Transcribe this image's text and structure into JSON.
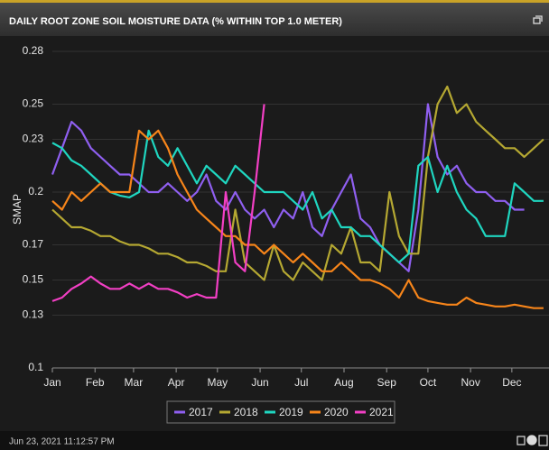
{
  "chart_data": {
    "type": "line",
    "title": "DAILY ROOT ZONE SOIL MOISTURE DATA (% WITHIN TOP 1.0 METER)",
    "y_label": "SMAP",
    "timestamp": "Jun 23, 2021 11:12:57 PM",
    "x": [
      0,
      7,
      14,
      21,
      28,
      35,
      42,
      49,
      56,
      63,
      70,
      77,
      84,
      91,
      98,
      105,
      112,
      119,
      126,
      133,
      140,
      147,
      154,
      161,
      168,
      175,
      182,
      189,
      196,
      203,
      210,
      217,
      224,
      231,
      238,
      245,
      252,
      259,
      266,
      273,
      280,
      287,
      294,
      301,
      308,
      315,
      322,
      329,
      336,
      343,
      350,
      357
    ],
    "xlim": [
      0,
      361
    ],
    "xticks": [
      {
        "value": 0,
        "label": "Jan"
      },
      {
        "value": 31,
        "label": "Feb"
      },
      {
        "value": 59,
        "label": "Mar"
      },
      {
        "value": 90,
        "label": "Apr"
      },
      {
        "value": 120,
        "label": "May"
      },
      {
        "value": 151,
        "label": "Jun"
      },
      {
        "value": 181,
        "label": "Jul"
      },
      {
        "value": 212,
        "label": "Aug"
      },
      {
        "value": 243,
        "label": "Sep"
      },
      {
        "value": 273,
        "label": "Oct"
      },
      {
        "value": 304,
        "label": "Nov"
      },
      {
        "value": 334,
        "label": "Dec"
      }
    ],
    "ylim": [
      0.1,
      0.28
    ],
    "yticks": [
      0.1,
      0.13,
      0.15,
      0.17,
      0.2,
      0.23,
      0.25,
      0.28
    ],
    "grid": true,
    "legend": "bottom",
    "series": [
      {
        "name": "2017",
        "color": "#8f5ff0",
        "values": [
          0.21,
          0.225,
          0.24,
          0.235,
          0.225,
          0.22,
          0.215,
          0.21,
          0.21,
          0.205,
          0.2,
          0.2,
          0.205,
          0.2,
          0.195,
          0.2,
          0.21,
          0.195,
          0.19,
          0.2,
          0.19,
          0.185,
          0.19,
          0.18,
          0.19,
          0.185,
          0.2,
          0.18,
          0.175,
          0.19,
          0.2,
          0.21,
          0.185,
          0.18,
          0.17,
          0.165,
          0.16,
          0.155,
          0.19,
          0.25,
          0.22,
          0.21,
          0.215,
          0.205,
          0.2,
          0.2,
          0.195,
          0.195,
          0.19,
          0.19,
          null,
          null
        ]
      },
      {
        "name": "2018",
        "color": "#b5a832",
        "values": [
          0.19,
          0.185,
          0.18,
          0.18,
          0.178,
          0.175,
          0.175,
          0.172,
          0.17,
          0.17,
          0.168,
          0.165,
          0.165,
          0.163,
          0.16,
          0.16,
          0.158,
          0.155,
          0.155,
          0.19,
          0.16,
          0.155,
          0.15,
          0.17,
          0.155,
          0.15,
          0.16,
          0.155,
          0.15,
          0.17,
          0.165,
          0.18,
          0.16,
          0.16,
          0.155,
          0.2,
          0.175,
          0.165,
          0.165,
          0.22,
          0.25,
          0.26,
          0.245,
          0.25,
          0.24,
          0.235,
          0.23,
          0.225,
          0.225,
          0.22,
          0.225,
          0.23
        ]
      },
      {
        "name": "2019",
        "color": "#1fd6c0",
        "values": [
          0.228,
          0.225,
          0.218,
          0.215,
          0.21,
          0.205,
          0.2,
          0.198,
          0.197,
          0.2,
          0.235,
          0.22,
          0.215,
          0.225,
          0.215,
          0.205,
          0.215,
          0.21,
          0.205,
          0.215,
          0.21,
          0.205,
          0.2,
          0.2,
          0.2,
          0.195,
          0.19,
          0.2,
          0.185,
          0.19,
          0.18,
          0.18,
          0.175,
          0.175,
          0.17,
          0.165,
          0.16,
          0.165,
          0.215,
          0.22,
          0.2,
          0.215,
          0.2,
          0.19,
          0.185,
          0.175,
          0.175,
          0.175,
          0.205,
          0.2,
          0.195,
          0.195
        ]
      },
      {
        "name": "2020",
        "color": "#f7851a",
        "values": [
          0.195,
          0.19,
          0.2,
          0.195,
          0.2,
          0.205,
          0.2,
          0.2,
          0.2,
          0.235,
          0.23,
          0.235,
          0.225,
          0.21,
          0.2,
          0.19,
          0.185,
          0.18,
          0.175,
          0.175,
          0.17,
          0.17,
          0.165,
          0.17,
          0.165,
          0.16,
          0.165,
          0.16,
          0.155,
          0.155,
          0.16,
          0.155,
          0.15,
          0.15,
          0.148,
          0.145,
          0.14,
          0.15,
          0.14,
          0.138,
          0.137,
          0.136,
          0.136,
          0.14,
          0.137,
          0.136,
          0.135,
          0.135,
          0.136,
          0.135,
          0.134,
          0.134
        ]
      },
      {
        "name": "2021",
        "color": "#f23fc4",
        "values": [
          0.138,
          0.14,
          0.145,
          0.148,
          0.152,
          0.148,
          0.145,
          0.145,
          0.148,
          0.145,
          0.148,
          0.145,
          0.145,
          0.143,
          0.14,
          0.142,
          0.14,
          0.14,
          0.2,
          0.16,
          0.155,
          0.2,
          0.25,
          null,
          null,
          null,
          null,
          null,
          null,
          null,
          null,
          null,
          null,
          null,
          null,
          null,
          null,
          null,
          null,
          null,
          null,
          null,
          null,
          null,
          null,
          null,
          null,
          null,
          null,
          null,
          null,
          null
        ]
      }
    ]
  }
}
